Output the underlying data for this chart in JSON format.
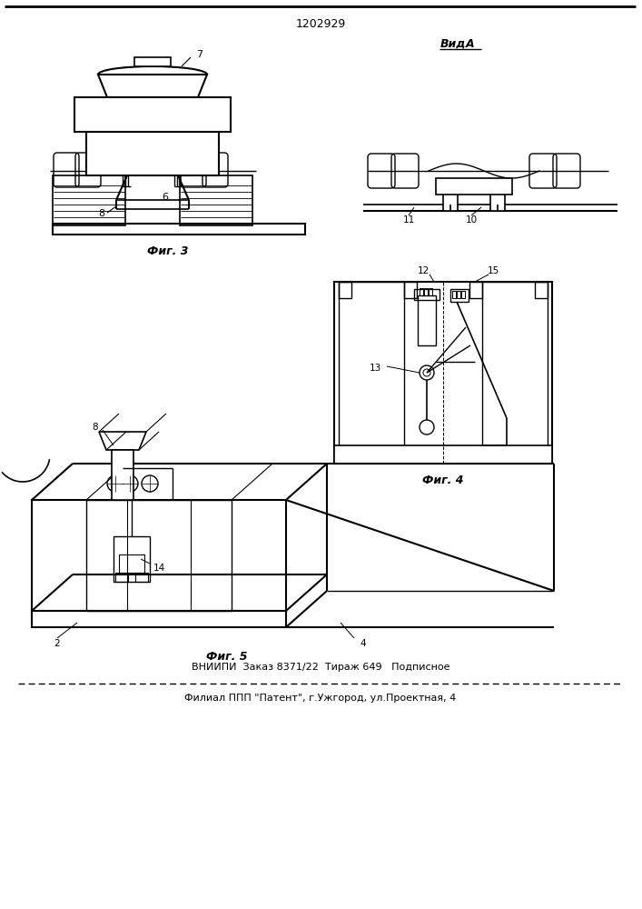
{
  "title": "1202929",
  "view_label": "ВидА",
  "fig3_label": "Фиг. 3",
  "fig4_label": "Фиг. 4",
  "fig5_label": "Фиг. 5",
  "footer_line1": "ВНИИПИ  Заказ 8371/22  Тираж 649   Подписное",
  "footer_line2": "Филиал ППП \"Патент\", г.Ужгород, ул.Проектная, 4",
  "bg_color": "#ffffff",
  "line_color": "#000000"
}
